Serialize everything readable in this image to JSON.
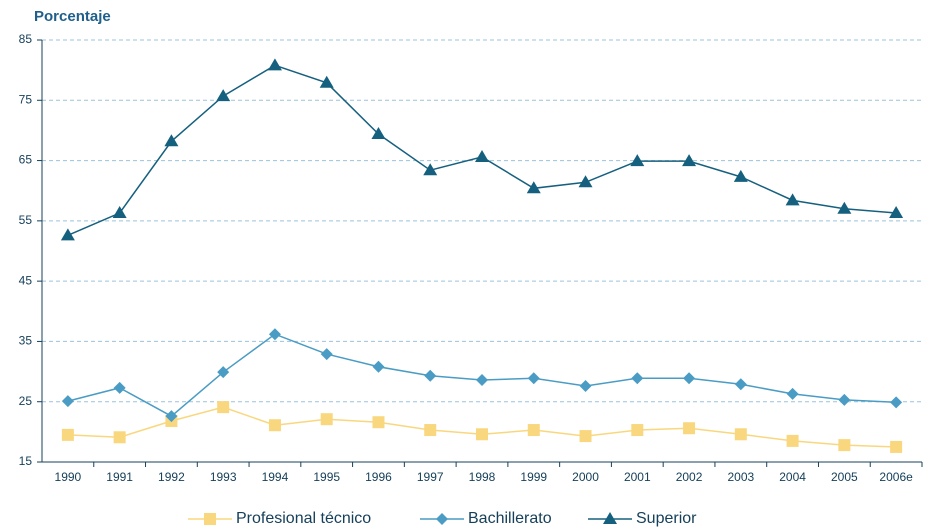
{
  "chart_data": {
    "type": "line",
    "ylabel": "Porcentaje",
    "categories": [
      "1990",
      "1991",
      "1992",
      "1993",
      "1994",
      "1995",
      "1996",
      "1997",
      "1998",
      "1999",
      "2000",
      "2001",
      "2002",
      "2003",
      "2004",
      "2005",
      "2006e"
    ],
    "series": [
      {
        "name": "Profesional técnico",
        "color": "#f9d77e",
        "marker": "square",
        "values": [
          19.5,
          19.1,
          21.8,
          24.1,
          21.1,
          22.1,
          21.6,
          20.3,
          19.6,
          20.3,
          19.3,
          20.3,
          20.6,
          19.6,
          18.5,
          17.8,
          17.5
        ]
      },
      {
        "name": "Bachillerato",
        "color": "#4a9cc4",
        "marker": "diamond",
        "values": [
          25.1,
          27.3,
          22.6,
          29.9,
          36.2,
          32.9,
          30.8,
          29.3,
          28.6,
          28.9,
          27.6,
          28.9,
          28.9,
          27.9,
          26.3,
          25.3,
          24.9
        ]
      },
      {
        "name": "Superior",
        "color": "#16607f",
        "marker": "triangle",
        "values": [
          52.6,
          56.3,
          68.2,
          75.7,
          80.8,
          77.9,
          69.4,
          63.4,
          65.6,
          60.4,
          61.4,
          64.9,
          64.9,
          62.3,
          58.4,
          57.0,
          56.3
        ]
      }
    ],
    "ylim": [
      15,
      85
    ],
    "yticks": [
      15,
      25,
      35,
      45,
      55,
      65,
      75,
      85
    ],
    "grid": true
  }
}
